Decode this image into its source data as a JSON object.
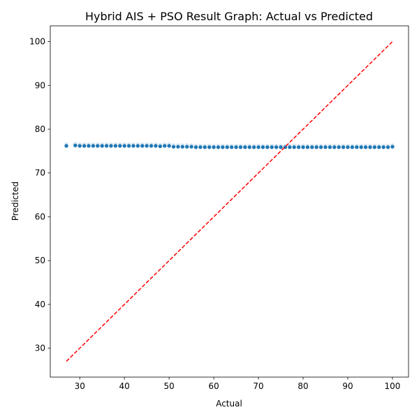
{
  "chart_data": {
    "type": "scatter",
    "title": "Hybrid AIS + PSO Result Graph: Actual vs Predicted",
    "xlabel": "Actual",
    "ylabel": "Predicted",
    "xlim": [
      23.4,
      103.6
    ],
    "ylim": [
      23.4,
      103.6
    ],
    "xticks": [
      30,
      40,
      50,
      60,
      70,
      80,
      90,
      100
    ],
    "yticks": [
      30,
      40,
      50,
      60,
      70,
      80,
      90,
      100
    ],
    "grid": false,
    "series": [
      {
        "color": "#1f77b4",
        "marker": "circle",
        "x": [
          27,
          29,
          30,
          31,
          32,
          33,
          34,
          35,
          36,
          37,
          38,
          39,
          40,
          41,
          42,
          43,
          44,
          45,
          46,
          47,
          48,
          49,
          50,
          51,
          52,
          53,
          54,
          55,
          56,
          57,
          58,
          59,
          60,
          61,
          62,
          63,
          64,
          65,
          66,
          67,
          68,
          69,
          70,
          71,
          72,
          73,
          74,
          75,
          76,
          77,
          78,
          79,
          80,
          81,
          82,
          83,
          84,
          85,
          86,
          87,
          88,
          89,
          90,
          91,
          92,
          93,
          94,
          95,
          96,
          97,
          98,
          99,
          100
        ],
        "y": [
          76.2,
          76.3,
          76.2,
          76.2,
          76.2,
          76.2,
          76.2,
          76.2,
          76.2,
          76.2,
          76.2,
          76.2,
          76.2,
          76.2,
          76.2,
          76.2,
          76.2,
          76.2,
          76.2,
          76.2,
          76.1,
          76.2,
          76.2,
          76.0,
          76.0,
          76.0,
          76.0,
          76.0,
          75.9,
          75.9,
          75.9,
          75.9,
          75.9,
          75.9,
          75.9,
          75.9,
          75.9,
          75.9,
          75.9,
          75.9,
          75.9,
          75.9,
          75.9,
          75.9,
          75.9,
          75.9,
          75.9,
          75.9,
          75.9,
          75.9,
          75.9,
          75.9,
          75.9,
          75.9,
          75.9,
          75.9,
          75.9,
          75.9,
          75.9,
          75.9,
          75.9,
          75.9,
          75.9,
          75.9,
          75.9,
          75.9,
          75.9,
          75.9,
          75.9,
          75.9,
          75.9,
          75.9,
          76.0
        ]
      }
    ],
    "reference_line": {
      "style": "dashed",
      "color": "#ff0000",
      "x": [
        27,
        100
      ],
      "y": [
        27,
        100
      ]
    }
  }
}
